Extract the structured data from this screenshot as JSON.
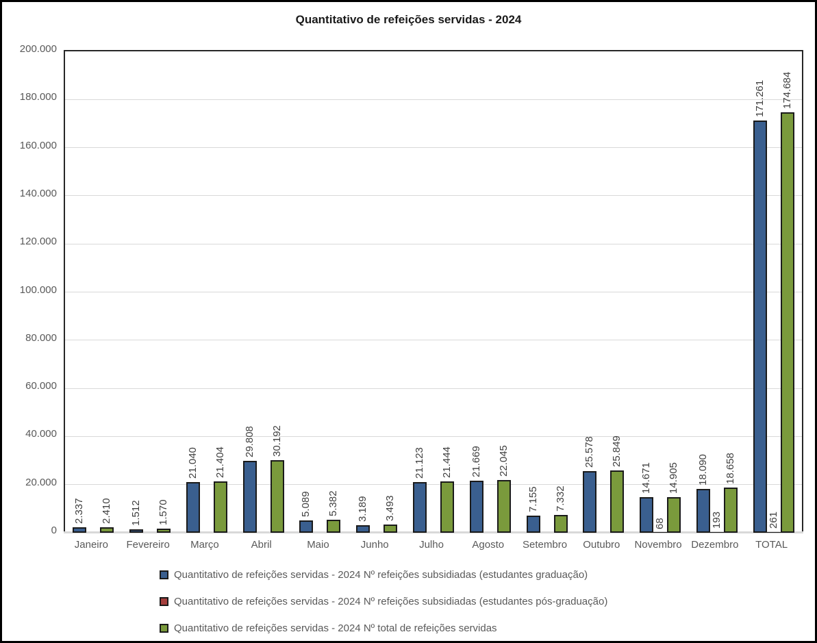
{
  "chart_data": {
    "type": "bar",
    "title": "Quantitativo de refeições servidas - 2024",
    "xlabel": "",
    "ylabel": "",
    "ylim": [
      0,
      200000
    ],
    "grid": true,
    "legend_position": "bottom-left",
    "y_ticks": [
      "200.000",
      "180.000",
      "160.000",
      "140.000",
      "120.000",
      "100.000",
      "80.000",
      "60.000",
      "40.000",
      "20.000",
      "0"
    ],
    "categories": [
      "Janeiro",
      "Fevereiro",
      "Março",
      "Abril",
      "Maio",
      "Junho",
      "Julho",
      "Agosto",
      "Setembro",
      "Outubro",
      "Novembro",
      "Dezembro",
      "TOTAL"
    ],
    "series": [
      {
        "name": "Quantitativo de refeições servidas - 2024 Nº refeições subsidiadas (estudantes graduação)",
        "color": "#3A5F8F",
        "values": [
          2337,
          1512,
          21040,
          29808,
          5089,
          3189,
          21123,
          21669,
          7155,
          25578,
          14671,
          18090,
          171261
        ],
        "labels": [
          "2.337",
          "1.512",
          "21.040",
          "29.808",
          "5.089",
          "3.189",
          "21.123",
          "21.669",
          "7.155",
          "25.578",
          "14.671",
          "18.090",
          "171.261"
        ]
      },
      {
        "name": "Quantitativo de refeições servidas - 2024 Nº refeições subsidiadas (estudantes pós-graduação)",
        "color": "#A43E3C",
        "values": [
          null,
          null,
          null,
          null,
          null,
          null,
          null,
          null,
          null,
          null,
          68,
          193,
          261
        ],
        "labels": [
          null,
          null,
          null,
          null,
          null,
          null,
          null,
          null,
          null,
          null,
          "68",
          "193",
          "261"
        ]
      },
      {
        "name": "Quantitativo de refeições servidas - 2024 Nº total de refeições servidas",
        "color": "#7A9A3C",
        "values": [
          2410,
          1570,
          21404,
          30192,
          5382,
          3493,
          21444,
          22045,
          7332,
          25849,
          14905,
          18658,
          174684
        ],
        "labels": [
          "2.410",
          "1.570",
          "21.404",
          "30.192",
          "5.382",
          "3.493",
          "21.444",
          "22.045",
          "7.332",
          "25.849",
          "14.905",
          "18.658",
          "174.684"
        ]
      }
    ],
    "colors": {
      "grid": "#d9d9d9",
      "axis_text": "#595959",
      "data_label_text": "#3f3f3f",
      "bar_border": "#1a1a1a",
      "title_text": "#1a1a1a"
    }
  }
}
